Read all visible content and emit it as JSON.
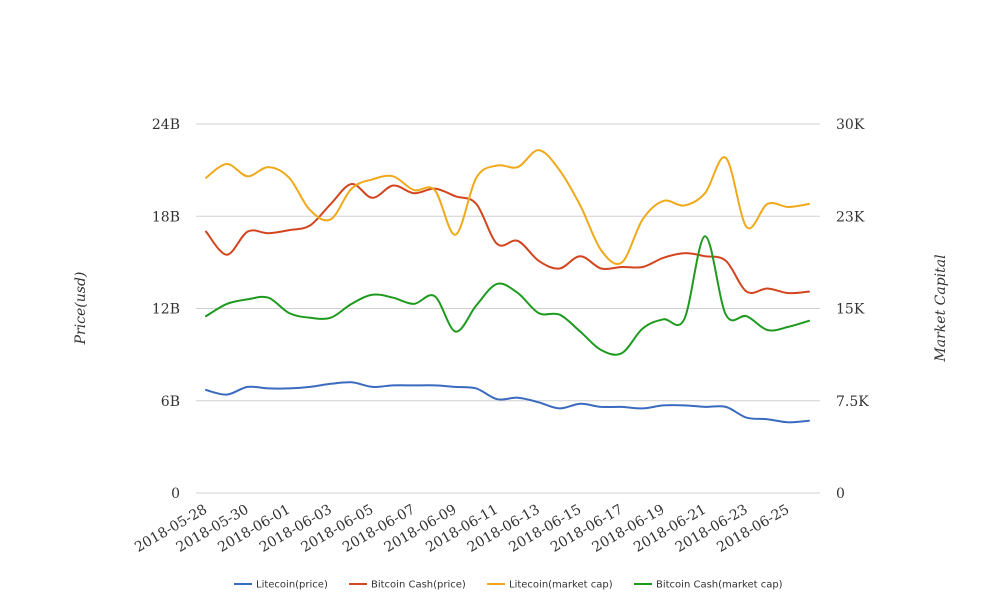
{
  "chart_data": {
    "type": "line",
    "x": [
      "2018-05-28",
      "2018-05-29",
      "2018-05-30",
      "2018-05-31",
      "2018-06-01",
      "2018-06-02",
      "2018-06-03",
      "2018-06-04",
      "2018-06-05",
      "2018-06-06",
      "2018-06-07",
      "2018-06-08",
      "2018-06-09",
      "2018-06-10",
      "2018-06-11",
      "2018-06-12",
      "2018-06-13",
      "2018-06-14",
      "2018-06-15",
      "2018-06-16",
      "2018-06-17",
      "2018-06-18",
      "2018-06-19",
      "2018-06-20",
      "2018-06-21",
      "2018-06-22",
      "2018-06-23",
      "2018-06-24",
      "2018-06-25",
      "2018-06-26"
    ],
    "x_tick_labels": [
      "2018-05-28",
      "2018-05-30",
      "2018-06-01",
      "2018-06-03",
      "2018-06-05",
      "2018-06-07",
      "2018-06-09",
      "2018-06-11",
      "2018-06-13",
      "2018-06-15",
      "2018-06-17",
      "2018-06-19",
      "2018-06-21",
      "2018-06-23",
      "2018-06-25"
    ],
    "ylabel_left": "Price(usd)",
    "ylabel_right": "Market Capital",
    "y_left": {
      "min": 0,
      "max": 24000000000,
      "ticks": [
        0,
        6000000000,
        12000000000,
        18000000000,
        24000000000
      ],
      "tick_labels": [
        "0",
        "6B",
        "12B",
        "18B",
        "24B"
      ]
    },
    "y_right": {
      "min": 0,
      "max": 30000,
      "ticks": [
        0,
        7500,
        15000,
        22500,
        30000
      ],
      "tick_labels": [
        "0",
        "7.5K",
        "15K",
        "23K",
        "30K"
      ]
    },
    "grid": true,
    "legend_position": "bottom",
    "series": [
      {
        "name": "Litecoin(price)",
        "color": "#3a6bbf",
        "axis": "left",
        "values": [
          6.7,
          6.4,
          6.9,
          6.8,
          6.8,
          6.9,
          7.1,
          7.2,
          6.9,
          7.0,
          7.0,
          7.0,
          6.9,
          6.8,
          6.1,
          6.2,
          5.9,
          5.5,
          5.8,
          5.6,
          5.6,
          5.5,
          5.7,
          5.7,
          5.6,
          5.6,
          4.9,
          4.8,
          4.6,
          4.7
        ]
      },
      {
        "name": "Bitcoin Cash(price)",
        "color": "#d2451e",
        "axis": "left",
        "values": [
          17.0,
          15.5,
          17.0,
          16.9,
          17.1,
          17.4,
          18.8,
          20.1,
          19.2,
          20.0,
          19.5,
          19.8,
          19.3,
          18.8,
          16.2,
          16.4,
          15.1,
          14.6,
          15.4,
          14.6,
          14.7,
          14.7,
          15.3,
          15.6,
          15.4,
          15.1,
          13.1,
          13.3,
          13.0,
          13.1
        ]
      },
      {
        "name": "Litecoin(market cap)",
        "color": "#f0a91a",
        "axis": "left",
        "values": [
          20.5,
          21.4,
          20.6,
          21.2,
          20.5,
          18.4,
          17.8,
          19.8,
          20.4,
          20.6,
          19.7,
          19.7,
          16.8,
          20.5,
          21.3,
          21.2,
          22.3,
          21.0,
          18.7,
          15.8,
          15.0,
          17.8,
          19.0,
          18.7,
          19.5,
          21.8,
          17.3,
          18.8,
          18.6,
          18.8
        ]
      },
      {
        "name": "Bitcoin Cash(market cap)",
        "color": "#1e9a1e",
        "axis": "left",
        "values": [
          11.5,
          12.3,
          12.6,
          12.7,
          11.7,
          11.4,
          11.4,
          12.3,
          12.9,
          12.7,
          12.3,
          12.8,
          10.5,
          12.2,
          13.6,
          13.0,
          11.7,
          11.6,
          10.5,
          9.3,
          9.1,
          10.7,
          11.3,
          11.3,
          16.7,
          11.6,
          11.5,
          10.6,
          10.8,
          11.2
        ]
      }
    ]
  }
}
